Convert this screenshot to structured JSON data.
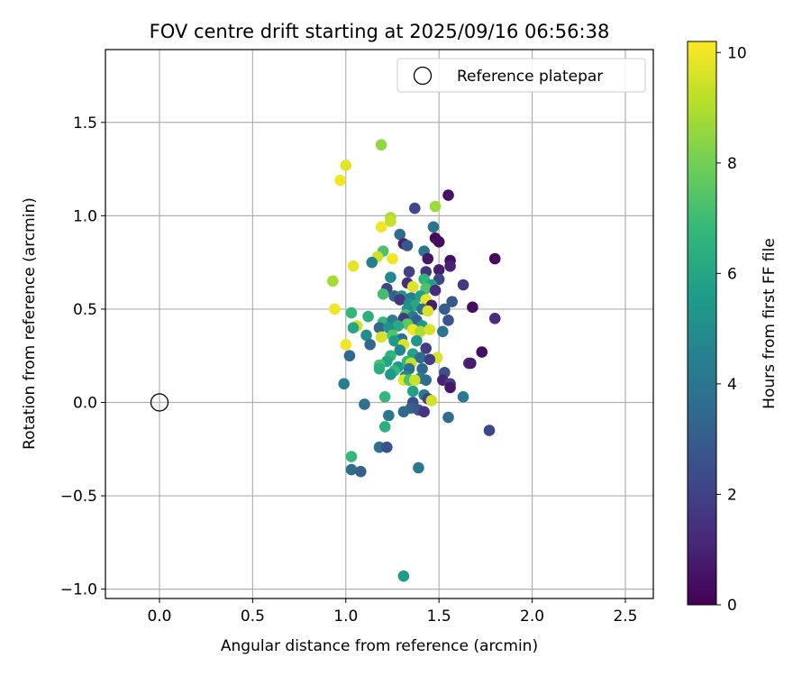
{
  "chart_data": {
    "type": "scatter",
    "title": "FOV centre drift starting at 2025/09/16 06:56:38",
    "xlabel": "Angular distance from reference (arcmin)",
    "ylabel": "Rotation from reference (arcmin)",
    "xlim": [
      -0.29,
      2.65
    ],
    "ylim": [
      -1.05,
      1.89
    ],
    "xticks": [
      0.0,
      0.5,
      1.0,
      1.5,
      2.0,
      2.5
    ],
    "xtick_labels": [
      "0.0",
      "0.5",
      "1.0",
      "1.5",
      "2.0",
      "2.5"
    ],
    "yticks": [
      -1.0,
      -0.5,
      0.0,
      0.5,
      1.0,
      1.5
    ],
    "ytick_labels": [
      "−1.0",
      "−0.5",
      "0.0",
      "0.5",
      "1.0",
      "1.5"
    ],
    "grid": true,
    "legend": {
      "position": "top-right",
      "label": "Reference platepar"
    },
    "reference_point": {
      "x": 0.0,
      "y": 0.0
    },
    "colorbar": {
      "label": "Hours from first FF file",
      "range": [
        0,
        10.2
      ],
      "ticks": [
        0,
        2,
        4,
        6,
        8,
        10
      ],
      "tick_labels": [
        "0",
        "2",
        "4",
        "6",
        "8",
        "10"
      ],
      "colormap": "viridis",
      "colors": [
        "#440154",
        "#482878",
        "#3e4989",
        "#31688e",
        "#26828e",
        "#1f9e89",
        "#35b779",
        "#6ece58",
        "#b5de2b",
        "#fde725"
      ]
    },
    "series": [
      {
        "points": [
          [
            1.19,
            1.38,
            8.5
          ],
          [
            1.0,
            1.27,
            9.8
          ],
          [
            0.97,
            1.19,
            10.0
          ],
          [
            1.55,
            1.11,
            0.5
          ],
          [
            1.37,
            1.04,
            2.2
          ],
          [
            1.48,
            1.05,
            8.7
          ],
          [
            1.24,
            0.99,
            8.9
          ],
          [
            1.24,
            0.97,
            9.3
          ],
          [
            1.19,
            0.94,
            10.0
          ],
          [
            1.47,
            0.94,
            4.0
          ],
          [
            1.29,
            0.9,
            3.6
          ],
          [
            1.48,
            0.88,
            0.2
          ],
          [
            1.5,
            0.86,
            0.3
          ],
          [
            1.31,
            0.85,
            1.0
          ],
          [
            1.33,
            0.84,
            2.8
          ],
          [
            1.42,
            0.81,
            4.0
          ],
          [
            1.2,
            0.81,
            7.3
          ],
          [
            1.17,
            0.78,
            9.5
          ],
          [
            1.25,
            0.77,
            10.0
          ],
          [
            1.14,
            0.75,
            4.5
          ],
          [
            1.44,
            0.77,
            0.6
          ],
          [
            1.56,
            0.76,
            0.4
          ],
          [
            1.8,
            0.77,
            0.2
          ],
          [
            1.04,
            0.73,
            9.8
          ],
          [
            1.5,
            0.71,
            0.8
          ],
          [
            1.56,
            0.73,
            1.0
          ],
          [
            1.34,
            0.7,
            2.0
          ],
          [
            1.43,
            0.7,
            1.5
          ],
          [
            1.24,
            0.67,
            4.8
          ],
          [
            1.42,
            0.66,
            6.7
          ],
          [
            1.5,
            0.66,
            2.2
          ],
          [
            0.93,
            0.65,
            8.8
          ],
          [
            1.33,
            0.64,
            1.4
          ],
          [
            1.46,
            0.63,
            5.8
          ],
          [
            1.63,
            0.63,
            1.8
          ],
          [
            1.36,
            0.62,
            9.7
          ],
          [
            1.22,
            0.61,
            2.2
          ],
          [
            1.43,
            0.61,
            7.3
          ],
          [
            1.48,
            0.6,
            1.2
          ],
          [
            1.2,
            0.58,
            7.1
          ],
          [
            1.26,
            0.57,
            3.2
          ],
          [
            1.3,
            0.57,
            5.2
          ],
          [
            1.35,
            0.56,
            4.4
          ],
          [
            1.4,
            0.57,
            5.7
          ],
          [
            1.29,
            0.55,
            1.6
          ],
          [
            1.43,
            0.55,
            9.9
          ],
          [
            1.34,
            0.53,
            4.8
          ],
          [
            1.57,
            0.54,
            2.8
          ],
          [
            1.37,
            0.52,
            6.1
          ],
          [
            1.46,
            0.52,
            0.8
          ],
          [
            1.33,
            0.5,
            5.2
          ],
          [
            1.41,
            0.5,
            3.7
          ],
          [
            1.53,
            0.5,
            3.0
          ],
          [
            1.68,
            0.51,
            0.4
          ],
          [
            0.94,
            0.5,
            10.0
          ],
          [
            1.03,
            0.48,
            6.8
          ],
          [
            1.32,
            0.47,
            7.2
          ],
          [
            1.36,
            0.46,
            4.2
          ],
          [
            1.44,
            0.49,
            9.6
          ],
          [
            1.12,
            0.46,
            6.4
          ],
          [
            1.31,
            0.45,
            1.8
          ],
          [
            1.38,
            0.44,
            3.2
          ],
          [
            1.55,
            0.44,
            2.7
          ],
          [
            1.8,
            0.45,
            1.3
          ],
          [
            1.2,
            0.43,
            6.8
          ],
          [
            1.25,
            0.44,
            4.4
          ],
          [
            1.33,
            0.42,
            7.6
          ],
          [
            1.28,
            0.41,
            6.2
          ],
          [
            1.41,
            0.41,
            5.4
          ],
          [
            1.06,
            0.41,
            9.5
          ],
          [
            1.04,
            0.4,
            6.0
          ],
          [
            1.18,
            0.4,
            3.4
          ],
          [
            1.23,
            0.4,
            5.2
          ],
          [
            1.36,
            0.39,
            10.0
          ],
          [
            1.4,
            0.38,
            8.9
          ],
          [
            1.45,
            0.39,
            9.6
          ],
          [
            1.52,
            0.38,
            4.0
          ],
          [
            1.11,
            0.36,
            5.0
          ],
          [
            1.19,
            0.35,
            9.6
          ],
          [
            1.25,
            0.36,
            7.4
          ],
          [
            1.3,
            0.34,
            3.6
          ],
          [
            1.38,
            0.33,
            5.3
          ],
          [
            1.26,
            0.33,
            5.6
          ],
          [
            1.31,
            0.31,
            9.7
          ],
          [
            1.13,
            0.31,
            3.4
          ],
          [
            1.0,
            0.31,
            10.0
          ],
          [
            1.43,
            0.29,
            1.8
          ],
          [
            1.29,
            0.28,
            4.6
          ],
          [
            1.36,
            0.26,
            5.8
          ],
          [
            1.24,
            0.25,
            6.6
          ],
          [
            1.4,
            0.24,
            3.6
          ],
          [
            1.49,
            0.24,
            9.6
          ],
          [
            1.02,
            0.25,
            3.4
          ],
          [
            1.45,
            0.23,
            2.0
          ],
          [
            1.22,
            0.22,
            6.0
          ],
          [
            1.33,
            0.22,
            6.8
          ],
          [
            1.66,
            0.21,
            1.6
          ],
          [
            1.67,
            0.21,
            0.8
          ],
          [
            1.73,
            0.27,
            0.4
          ],
          [
            1.18,
            0.2,
            7.2
          ],
          [
            1.35,
            0.21,
            9.3
          ],
          [
            1.28,
            0.19,
            5.6
          ],
          [
            1.34,
            0.18,
            3.8
          ],
          [
            1.41,
            0.18,
            3.4
          ],
          [
            1.18,
            0.18,
            6.4
          ],
          [
            1.26,
            0.17,
            6.8
          ],
          [
            1.53,
            0.16,
            2.6
          ],
          [
            1.24,
            0.15,
            5.4
          ],
          [
            1.32,
            0.14,
            4.9
          ],
          [
            1.4,
            0.13,
            4.4
          ],
          [
            1.31,
            0.12,
            9.8
          ],
          [
            1.34,
            0.12,
            7.3
          ],
          [
            1.37,
            0.12,
            9.4
          ],
          [
            1.43,
            0.12,
            3.6
          ],
          [
            1.52,
            0.12,
            1.0
          ],
          [
            1.56,
            0.1,
            2.0
          ],
          [
            0.99,
            0.1,
            4.4
          ],
          [
            1.56,
            0.08,
            0.6
          ],
          [
            1.36,
            0.06,
            5.8
          ],
          [
            1.42,
            0.04,
            4.2
          ],
          [
            1.21,
            0.03,
            6.8
          ],
          [
            1.44,
            0.02,
            2.0
          ],
          [
            1.46,
            0.01,
            9.5
          ],
          [
            1.63,
            0.03,
            4.2
          ],
          [
            1.36,
            0.0,
            2.4
          ],
          [
            1.1,
            -0.01,
            3.8
          ],
          [
            1.35,
            -0.03,
            3.0
          ],
          [
            1.39,
            -0.04,
            2.8
          ],
          [
            1.42,
            -0.05,
            1.6
          ],
          [
            1.31,
            -0.05,
            3.4
          ],
          [
            1.23,
            -0.07,
            4.0
          ],
          [
            1.55,
            -0.08,
            3.6
          ],
          [
            1.21,
            -0.13,
            6.4
          ],
          [
            1.77,
            -0.15,
            2.2
          ],
          [
            1.18,
            -0.24,
            3.8
          ],
          [
            1.22,
            -0.24,
            2.6
          ],
          [
            1.03,
            -0.29,
            6.8
          ],
          [
            1.03,
            -0.36,
            3.6
          ],
          [
            1.08,
            -0.37,
            3.2
          ],
          [
            1.39,
            -0.35,
            4.2
          ],
          [
            1.31,
            -0.93,
            5.6
          ]
        ]
      }
    ]
  }
}
